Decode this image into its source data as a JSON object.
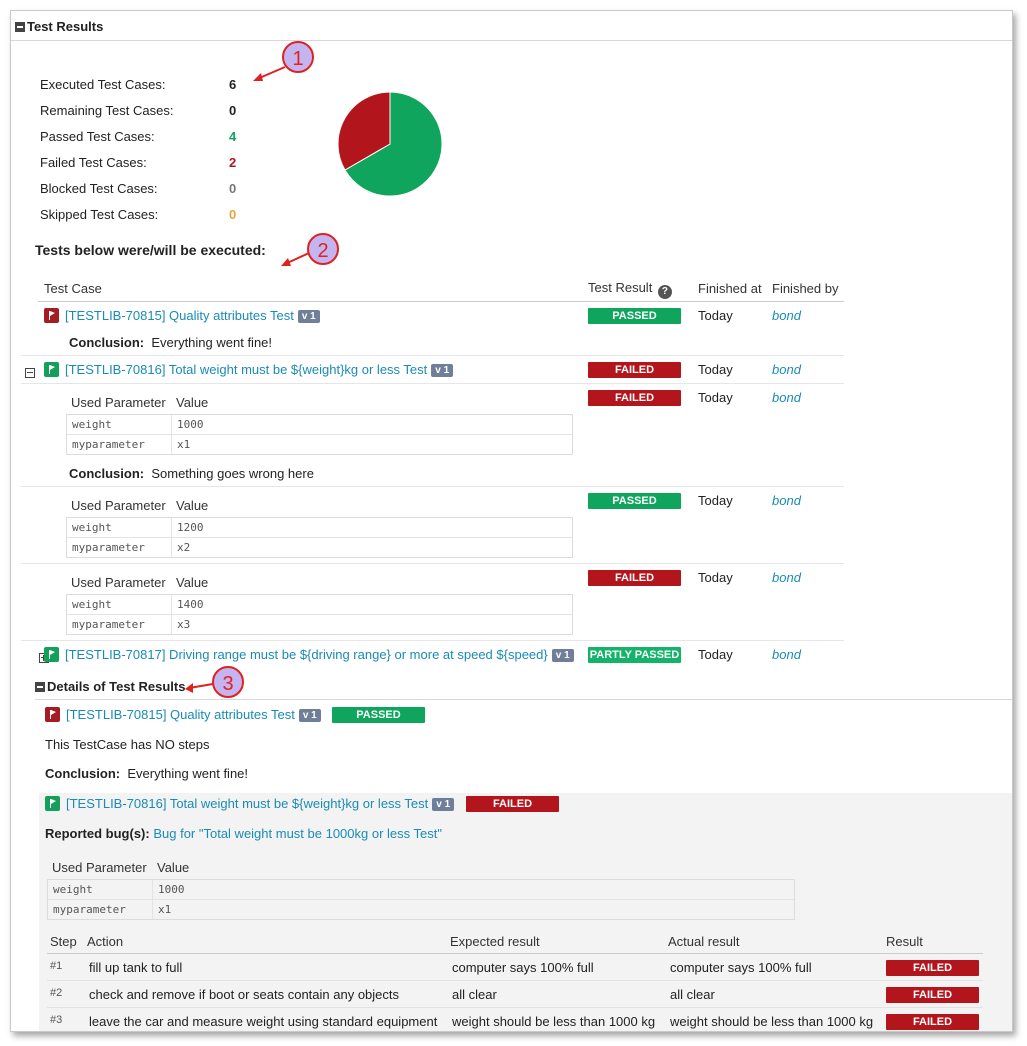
{
  "header": {
    "title": "Test Results"
  },
  "stats": [
    {
      "label": "Executed Test Cases:",
      "value": "6",
      "color": "#222222"
    },
    {
      "label": "Remaining Test Cases:",
      "value": "0",
      "color": "#222222"
    },
    {
      "label": "Passed Test Cases:",
      "value": "4",
      "color": "#0fa55c"
    },
    {
      "label": "Failed Test Cases:",
      "value": "2",
      "color": "#b3151c"
    },
    {
      "label": "Blocked Test Cases:",
      "value": "0",
      "color": "#777777"
    },
    {
      "label": "Skipped Test Cases:",
      "value": "0",
      "color": "#e8a33d"
    }
  ],
  "chart_data": {
    "type": "pie",
    "slices": [
      {
        "label": "Passed",
        "value": 4,
        "color": "#0fa55c"
      },
      {
        "label": "Failed",
        "value": 2,
        "color": "#b3151c"
      }
    ]
  },
  "callouts": [
    "1",
    "2",
    "3"
  ],
  "executed_heading": "Tests below were/will be executed:",
  "columns": {
    "test_case": "Test Case",
    "test_result": "Test Result",
    "help_icon": "?",
    "finished_at": "Finished at",
    "finished_by": "Finished by"
  },
  "tests": {
    "t1": {
      "name": "[TESTLIB-70815] Quality attributes Test",
      "version": "v 1",
      "result": "PASSED",
      "finished_at": "Today",
      "finished_by": "bond",
      "conclusion_label": "Conclusion:",
      "conclusion": "Everything went fine!"
    },
    "t2": {
      "name": "[TESTLIB-70816] Total weight must be ${weight}kg or less Test",
      "version": "v 1",
      "result": "FAILED",
      "finished_at": "Today",
      "finished_by": "bond",
      "param_header": "Used Parameter",
      "value_header": "Value",
      "runs": [
        {
          "result": "FAILED",
          "finished_at": "Today",
          "finished_by": "bond",
          "p1": "weight",
          "v1": "1000",
          "p2": "myparameter",
          "v2": "x1",
          "conclusion_label": "Conclusion:",
          "conclusion": "Something goes wrong here"
        },
        {
          "result": "PASSED",
          "finished_at": "Today",
          "finished_by": "bond",
          "p1": "weight",
          "v1": "1200",
          "p2": "myparameter",
          "v2": "x2"
        },
        {
          "result": "FAILED",
          "finished_at": "Today",
          "finished_by": "bond",
          "p1": "weight",
          "v1": "1400",
          "p2": "myparameter",
          "v2": "x3"
        }
      ]
    },
    "t3": {
      "name": "[TESTLIB-70817] Driving range must be ${driving range} or more at speed ${speed}",
      "version": "v 1",
      "result": "PARTLY PASSED",
      "finished_at": "Today",
      "finished_by": "bond"
    }
  },
  "details": {
    "title": "Details of Test Results",
    "d1": {
      "name": "[TESTLIB-70815] Quality attributes Test",
      "version": "v 1",
      "result": "PASSED",
      "no_steps": "This TestCase has NO steps",
      "conclusion_label": "Conclusion:",
      "conclusion": "Everything went fine!"
    },
    "d2": {
      "name": "[TESTLIB-70816] Total weight must be ${weight}kg or less Test",
      "version": "v 1",
      "result": "FAILED",
      "bug_label": "Reported bug(s):",
      "bug_link": "Bug for \"Total weight must be 1000kg or less Test\"",
      "param_header": "Used Parameter",
      "value_header": "Value",
      "p1": "weight",
      "v1": "1000",
      "p2": "myparameter",
      "v2": "x1",
      "step_headers": {
        "step": "Step",
        "action": "Action",
        "expected": "Expected result",
        "actual": "Actual result",
        "result": "Result"
      },
      "steps": [
        {
          "num": "#1",
          "action": "fill up tank to full",
          "expected": "computer says 100% full",
          "actual": "computer says 100% full",
          "result": "FAILED"
        },
        {
          "num": "#2",
          "action": "check and remove if boot or seats contain any objects",
          "expected": "all clear",
          "actual": "all clear",
          "result": "FAILED"
        },
        {
          "num": "#3",
          "action": "leave the car and measure weight using standard equipment",
          "expected": "weight should be less than 1000 kg",
          "actual": "weight should be less than 1000 kg",
          "result": "FAILED"
        }
      ]
    }
  }
}
